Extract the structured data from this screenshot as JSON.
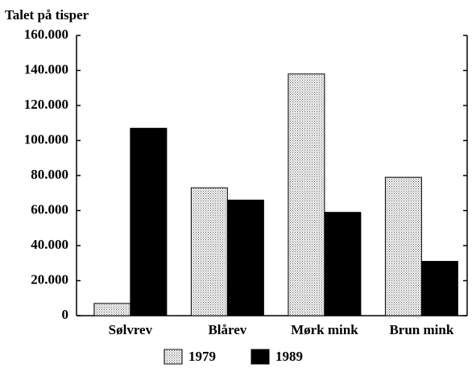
{
  "chart_data": {
    "type": "bar",
    "y_label": "Talet på tisper",
    "categories": [
      "Sølvrev",
      "Blårev",
      "Mørk mink",
      "Brun mink"
    ],
    "series": [
      {
        "name": "1979",
        "color": "#c8c8c8",
        "values": [
          7000,
          73000,
          138000,
          79000
        ]
      },
      {
        "name": "1989",
        "color": "#000000",
        "values": [
          107000,
          66000,
          59000,
          31000
        ]
      }
    ],
    "ylim": [
      0,
      160000
    ],
    "yticks": [
      0,
      {
        "value": 20000,
        "label": "20.000"
      },
      {
        "value": 40000,
        "label": "40.000"
      },
      {
        "value": 60000,
        "label": "60.000"
      },
      {
        "value": 80000,
        "label": "80.000"
      },
      {
        "value": 100000,
        "label": "100.000"
      },
      {
        "value": 120000,
        "label": "120.000"
      },
      {
        "value": 140000,
        "label": "140.000"
      },
      {
        "value": 160000,
        "label": "160.000"
      }
    ],
    "grid": false,
    "legend": "bottom"
  }
}
